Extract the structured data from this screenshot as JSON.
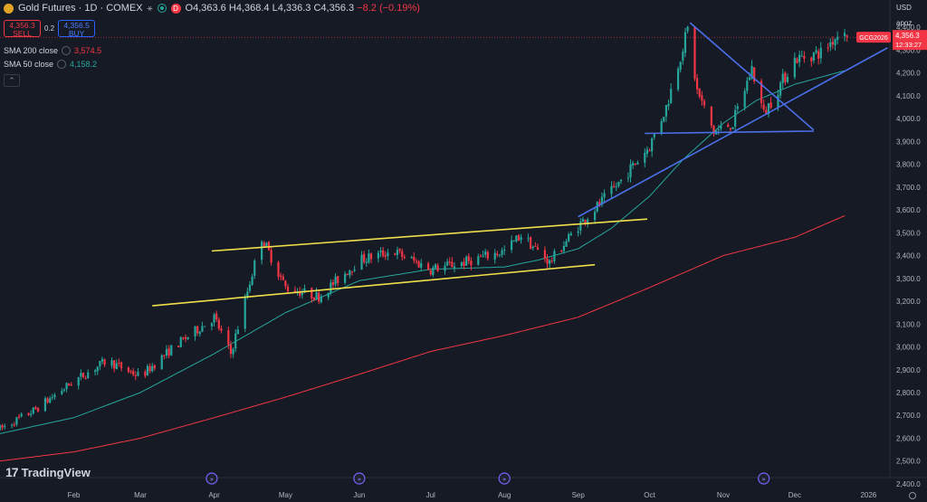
{
  "header": {
    "title": "Gold Futures · 1D · COMEX",
    "d_badge": "D",
    "ohlc": {
      "o": "O4,363.6",
      "h": "H4,368.4",
      "l": "L4,336.3",
      "c": "C4,356.3",
      "chg": "−8.2 (−0.19%)"
    }
  },
  "trade": {
    "sell_price": "4,356.3",
    "sell_label": "SELL",
    "spread": "0.2",
    "buy_price": "4,356.5",
    "buy_label": "BUY"
  },
  "indicators": [
    {
      "name": "SMA 200 close",
      "value": "3,574.5",
      "color": "#f23645"
    },
    {
      "name": "SMA 50 close",
      "value": "4,158.2",
      "color": "#26a69a"
    }
  ],
  "price_scale": {
    "currency": "USD",
    "mode": "apoz"
  },
  "last_price": {
    "symbol": "GCG2026",
    "price": "4,356.3",
    "countdown": "12:33:27",
    "color": "#f23645"
  },
  "branding": {
    "logo_mark": "17",
    "name": "TradingView"
  },
  "colors": {
    "bg": "#161a25",
    "up": "#26a69a",
    "down": "#f23645",
    "sma200": "#f23645",
    "sma50": "#26a69a",
    "channel": "#f0df4a",
    "triangle": "#4a6fe8"
  },
  "chart_data": {
    "type": "candlestick",
    "symbol": "Gold Futures",
    "interval": "1D",
    "exchange": "COMEX",
    "y_axis": {
      "ticks": [
        "2,400.0",
        "2,500.0",
        "2,600.0",
        "2,700.0",
        "2,800.0",
        "2,900.0",
        "3,000.0",
        "3,100.0",
        "3,200.0",
        "3,300.0",
        "3,400.0",
        "3,500.0",
        "3,600.0",
        "3,700.0",
        "3,800.0",
        "3,900.0",
        "4,000.0",
        "4,100.0",
        "4,200.0",
        "4,300.0",
        "4,400.0"
      ],
      "range": [
        2380,
        4460
      ]
    },
    "x_axis": {
      "labels": [
        "Feb",
        "Mar",
        "Apr",
        "May",
        "Jun",
        "Jul",
        "Aug",
        "Sep",
        "Oct",
        "Nov",
        "Dec",
        "2026"
      ],
      "range": [
        "2025-01-01",
        "2026-01-10"
      ]
    },
    "price_anchors": [
      [
        "2025-01-01",
        2640
      ],
      [
        "2025-01-15",
        2720
      ],
      [
        "2025-02-01",
        2850
      ],
      [
        "2025-02-15",
        2940
      ],
      [
        "2025-03-01",
        2870
      ],
      [
        "2025-03-15",
        3000
      ],
      [
        "2025-04-01",
        3130
      ],
      [
        "2025-04-08",
        2970
      ],
      [
        "2025-04-21",
        3480
      ],
      [
        "2025-05-01",
        3260
      ],
      [
        "2025-05-15",
        3220
      ],
      [
        "2025-06-01",
        3380
      ],
      [
        "2025-06-15",
        3420
      ],
      [
        "2025-07-01",
        3340
      ],
      [
        "2025-07-15",
        3370
      ],
      [
        "2025-08-01",
        3420
      ],
      [
        "2025-08-08",
        3490
      ],
      [
        "2025-08-20",
        3370
      ],
      [
        "2025-09-01",
        3530
      ],
      [
        "2025-09-15",
        3680
      ],
      [
        "2025-10-01",
        3880
      ],
      [
        "2025-10-08",
        4050
      ],
      [
        "2025-10-17",
        4390
      ],
      [
        "2025-10-21",
        4120
      ],
      [
        "2025-10-28",
        3940
      ],
      [
        "2025-11-05",
        3980
      ],
      [
        "2025-11-13",
        4220
      ],
      [
        "2025-11-18",
        4020
      ],
      [
        "2025-11-25",
        4150
      ],
      [
        "2025-12-01",
        4260
      ],
      [
        "2025-12-12",
        4290
      ],
      [
        "2025-12-22",
        4400
      ]
    ],
    "last_candle": {
      "o": 4363.6,
      "h": 4368.4,
      "l": 4336.3,
      "c": 4356.3
    },
    "sma50_anchors": [
      [
        "2025-01-01",
        2620
      ],
      [
        "2025-02-01",
        2690
      ],
      [
        "2025-03-01",
        2800
      ],
      [
        "2025-04-01",
        2970
      ],
      [
        "2025-05-01",
        3150
      ],
      [
        "2025-06-01",
        3290
      ],
      [
        "2025-07-01",
        3340
      ],
      [
        "2025-08-01",
        3350
      ],
      [
        "2025-08-15",
        3380
      ],
      [
        "2025-09-01",
        3430
      ],
      [
        "2025-09-15",
        3520
      ],
      [
        "2025-10-01",
        3660
      ],
      [
        "2025-10-15",
        3820
      ],
      [
        "2025-11-01",
        3980
      ],
      [
        "2025-11-15",
        4080
      ],
      [
        "2025-12-01",
        4150
      ],
      [
        "2025-12-22",
        4210
      ]
    ],
    "sma200_anchors": [
      [
        "2025-01-01",
        2500
      ],
      [
        "2025-02-01",
        2540
      ],
      [
        "2025-03-01",
        2600
      ],
      [
        "2025-04-01",
        2690
      ],
      [
        "2025-05-01",
        2780
      ],
      [
        "2025-06-01",
        2880
      ],
      [
        "2025-07-01",
        2980
      ],
      [
        "2025-08-01",
        3050
      ],
      [
        "2025-09-01",
        3130
      ],
      [
        "2025-10-01",
        3260
      ],
      [
        "2025-11-01",
        3400
      ],
      [
        "2025-12-01",
        3480
      ],
      [
        "2025-12-22",
        3574.5
      ]
    ],
    "drawings": {
      "channel_upper": [
        [
          "2025-03-31",
          3420
        ],
        [
          "2025-09-30",
          3560
        ]
      ],
      "channel_lower": [
        [
          "2025-03-06",
          3180
        ],
        [
          "2025-09-08",
          3360
        ]
      ],
      "trend_line": [
        [
          "2025-09-01",
          3570
        ],
        [
          "2026-01-09",
          4310
        ]
      ],
      "triangle_upper": [
        [
          "2025-10-18",
          4420
        ],
        [
          "2025-12-09",
          3950
        ]
      ],
      "triangle_base": [
        [
          "2025-09-29",
          3935
        ],
        [
          "2025-12-09",
          3945
        ]
      ]
    },
    "event_markers": [
      "2025-03-31",
      "2025-06-01",
      "2025-08-01",
      "2025-11-18"
    ]
  }
}
